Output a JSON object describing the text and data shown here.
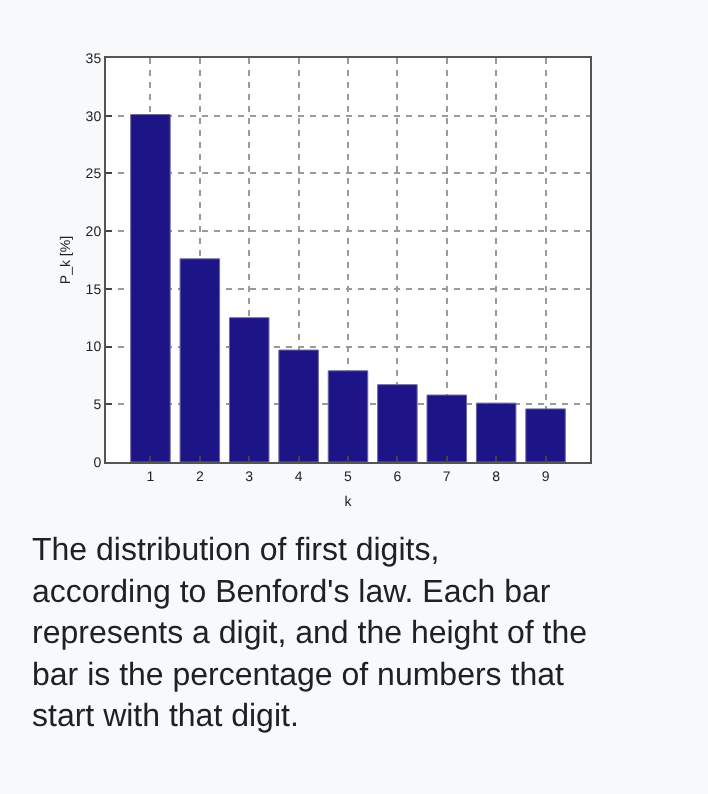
{
  "chart_data": {
    "type": "bar",
    "categories": [
      "1",
      "2",
      "3",
      "4",
      "5",
      "6",
      "7",
      "8",
      "9"
    ],
    "values": [
      30.1,
      17.6,
      12.5,
      9.7,
      7.9,
      6.7,
      5.8,
      5.1,
      4.6
    ],
    "color": "#1c1487",
    "xlabel": "k",
    "ylabel": "P_k [%]",
    "ylim": [
      0,
      35
    ],
    "yticks": [
      0,
      5,
      10,
      15,
      20,
      25,
      30,
      35
    ],
    "grid": true,
    "annotations": [
      "The distribution of first digits, according to Benford's law. Each bar represents a digit, and the height of the bar is the percentage of numbers that start with that digit."
    ]
  }
}
